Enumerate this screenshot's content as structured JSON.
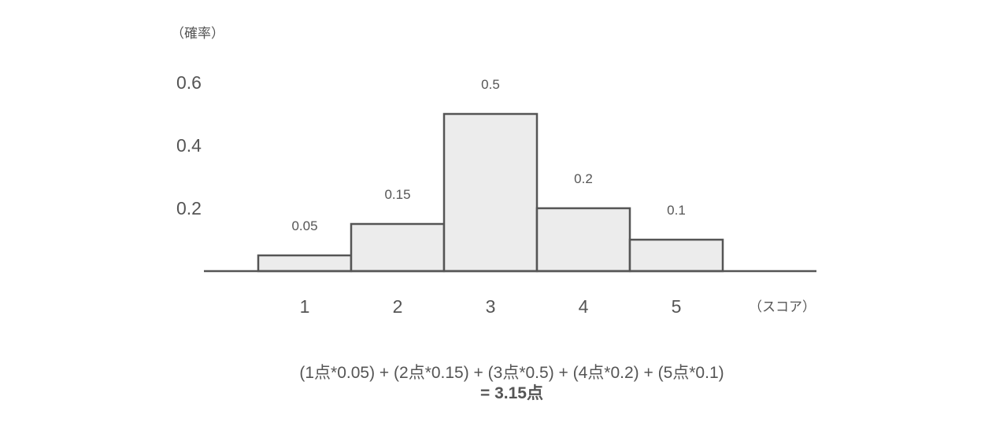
{
  "chart_data": {
    "type": "bar",
    "ylabel": "（確率）",
    "xlabel": "（スコア）",
    "categories": [
      "1",
      "2",
      "3",
      "4",
      "5"
    ],
    "values": [
      0.05,
      0.15,
      0.5,
      0.2,
      0.1
    ],
    "value_labels": [
      "0.05",
      "0.15",
      "0.5",
      "0.2",
      "0.1"
    ],
    "yticks": [
      "0.2",
      "0.4",
      "0.6"
    ],
    "ytick_values": [
      0.2,
      0.4,
      0.6
    ],
    "ylim": [
      0,
      0.6
    ],
    "grid": false,
    "bar_fill": "#ececec",
    "bar_stroke": "#555555"
  },
  "formula": {
    "expression": "(1点*0.05) + (2点*0.15)  + (3点*0.5) + (4点*0.2)  + (5点*0.1)",
    "result": "= 3.15点"
  }
}
